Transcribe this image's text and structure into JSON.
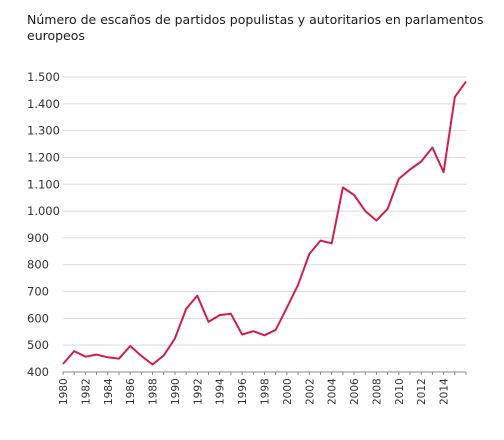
{
  "chart_data": {
    "type": "line",
    "title": "Número de escaños de partidos populistas y autoritarios en parlamentos europeos",
    "xlabel": "",
    "ylabel": "",
    "x": [
      1980,
      1981,
      1982,
      1983,
      1984,
      1985,
      1986,
      1987,
      1988,
      1989,
      1990,
      1991,
      1992,
      1993,
      1994,
      1995,
      1996,
      1997,
      1998,
      1999,
      2000,
      2001,
      2002,
      2003,
      2004,
      2005,
      2006,
      2007,
      2008,
      2009,
      2010,
      2011,
      2012,
      2013,
      2014,
      2015,
      2016
    ],
    "series": [
      {
        "values": [
          430,
          478,
          457,
          465,
          455,
          450,
          497,
          460,
          428,
          462,
          525,
          635,
          685,
          587,
          612,
          617,
          540,
          552,
          537,
          557,
          640,
          725,
          840,
          890,
          880,
          1088,
          1060,
          1000,
          965,
          1008,
          1120,
          1155,
          1185,
          1237,
          1145,
          1425,
          1483
        ],
        "color": "#d11e4b"
      }
    ],
    "ylim": [
      400,
      1500
    ],
    "yticks": [
      400,
      500,
      600,
      700,
      800,
      900,
      1000,
      1100,
      1200,
      1300,
      1400,
      1500
    ],
    "ytick_labels": [
      "400",
      "500",
      "600",
      "700",
      "800",
      "900",
      "1.000",
      "1.100",
      "1.200",
      "1.300",
      "1.400",
      "1.500"
    ],
    "xticks": [
      1980,
      1982,
      1984,
      1986,
      1988,
      1990,
      1992,
      1994,
      1996,
      1998,
      2000,
      2002,
      2004,
      2006,
      2008,
      2010,
      2012,
      2014
    ],
    "xtick_labels": [
      "1980",
      "1982",
      "1984",
      "1986",
      "1988",
      "1990",
      "1992",
      "1994",
      "1996",
      "1998",
      "2000",
      "2002",
      "2004",
      "2006",
      "2008",
      "2010",
      "2012",
      "2014"
    ],
    "grid": "horizontal",
    "grid_color": "#d9d9d9",
    "axis_color": "#888888"
  }
}
